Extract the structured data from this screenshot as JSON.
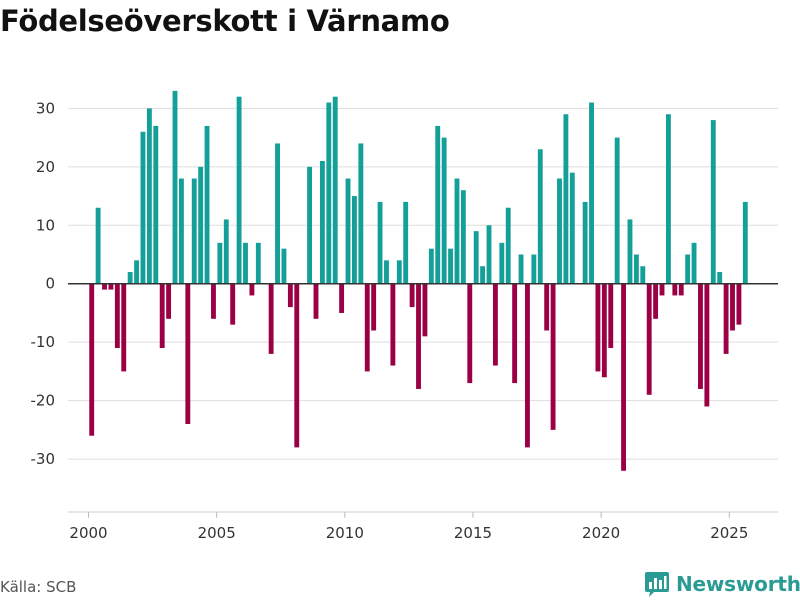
{
  "title": "Födelseöverskott i Värnamo",
  "source": "Källa: SCB",
  "brand": {
    "name": "Newsworthy",
    "icon": "newsworthy-logo-icon",
    "color": "#2a9b94"
  },
  "chart_data": {
    "type": "bar",
    "title": "Födelseöverskott i Värnamo",
    "xlabel": "",
    "ylabel": "",
    "xlim": [
      1999.2,
      2026.9
    ],
    "ylim": [
      -37,
      34
    ],
    "grid": true,
    "xticks": [
      2000,
      2005,
      2010,
      2015,
      2020,
      2025
    ],
    "yticks": [
      -30,
      -20,
      -10,
      0,
      10,
      20,
      30
    ],
    "colors": {
      "positive": "#14a098",
      "negative": "#9b0044",
      "zero_line": "#333333",
      "grid": "#dddddd"
    },
    "bar_width_months": 0.19,
    "x_unit": "quarter",
    "categories": [
      "2000 Q1",
      "2000 Q2",
      "2000 Q3",
      "2000 Q4",
      "2001 Q1",
      "2001 Q2",
      "2001 Q3",
      "2001 Q4",
      "2002 Q1",
      "2002 Q2",
      "2002 Q3",
      "2002 Q4",
      "2003 Q1",
      "2003 Q2",
      "2003 Q3",
      "2003 Q4",
      "2004 Q1",
      "2004 Q2",
      "2004 Q3",
      "2004 Q4",
      "2005 Q1",
      "2005 Q2",
      "2005 Q3",
      "2005 Q4",
      "2006 Q1",
      "2006 Q2",
      "2006 Q3",
      "2006 Q4",
      "2007 Q1",
      "2007 Q2",
      "2007 Q3",
      "2007 Q4",
      "2008 Q1",
      "2008 Q2",
      "2008 Q3",
      "2008 Q4",
      "2009 Q1",
      "2009 Q2",
      "2009 Q3",
      "2009 Q4",
      "2010 Q1",
      "2010 Q2",
      "2010 Q3",
      "2010 Q4",
      "2011 Q1",
      "2011 Q2",
      "2011 Q3",
      "2011 Q4",
      "2012 Q1",
      "2012 Q2",
      "2012 Q3",
      "2012 Q4",
      "2013 Q1",
      "2013 Q2",
      "2013 Q3",
      "2013 Q4",
      "2014 Q1",
      "2014 Q2",
      "2014 Q3",
      "2014 Q4",
      "2015 Q1",
      "2015 Q2",
      "2015 Q3",
      "2015 Q4",
      "2016 Q1",
      "2016 Q2",
      "2016 Q3",
      "2016 Q4",
      "2017 Q1",
      "2017 Q2",
      "2017 Q3",
      "2017 Q4",
      "2018 Q1",
      "2018 Q2",
      "2018 Q3",
      "2018 Q4",
      "2019 Q1",
      "2019 Q2",
      "2019 Q3",
      "2019 Q4",
      "2020 Q1",
      "2020 Q2",
      "2020 Q3",
      "2020 Q4",
      "2021 Q1",
      "2021 Q2",
      "2021 Q3",
      "2021 Q4",
      "2022 Q1",
      "2022 Q2",
      "2022 Q3",
      "2022 Q4",
      "2023 Q1",
      "2023 Q2",
      "2023 Q3",
      "2023 Q4",
      "2024 Q1",
      "2024 Q2",
      "2024 Q3",
      "2024 Q4",
      "2025 Q1",
      "2025 Q2",
      "2025 Q3",
      "2025 Q4"
    ],
    "values": [
      -26,
      13,
      -1,
      -1,
      -11,
      -15,
      2,
      4,
      26,
      30,
      27,
      -11,
      -6,
      33,
      18,
      -24,
      18,
      20,
      27,
      -6,
      7,
      11,
      -7,
      32,
      7,
      -2,
      7,
      0,
      -12,
      24,
      6,
      -4,
      -28,
      0,
      20,
      -6,
      21,
      31,
      32,
      -5,
      18,
      15,
      24,
      -15,
      -8,
      14,
      4,
      -14,
      4,
      14,
      -4,
      -18,
      -9,
      6,
      27,
      25,
      6,
      18,
      16,
      -17,
      9,
      3,
      10,
      -14,
      7,
      13,
      -17,
      5,
      -28,
      5,
      23,
      -8,
      -25,
      18,
      29,
      19,
      0,
      14,
      31,
      -15,
      -16,
      -11,
      25,
      -32,
      11,
      5,
      3,
      -19,
      -6,
      -2,
      29,
      -2,
      -2,
      5,
      7,
      -18,
      -21,
      28,
      2,
      -12,
      -8,
      -7,
      14,
      0
    ]
  }
}
